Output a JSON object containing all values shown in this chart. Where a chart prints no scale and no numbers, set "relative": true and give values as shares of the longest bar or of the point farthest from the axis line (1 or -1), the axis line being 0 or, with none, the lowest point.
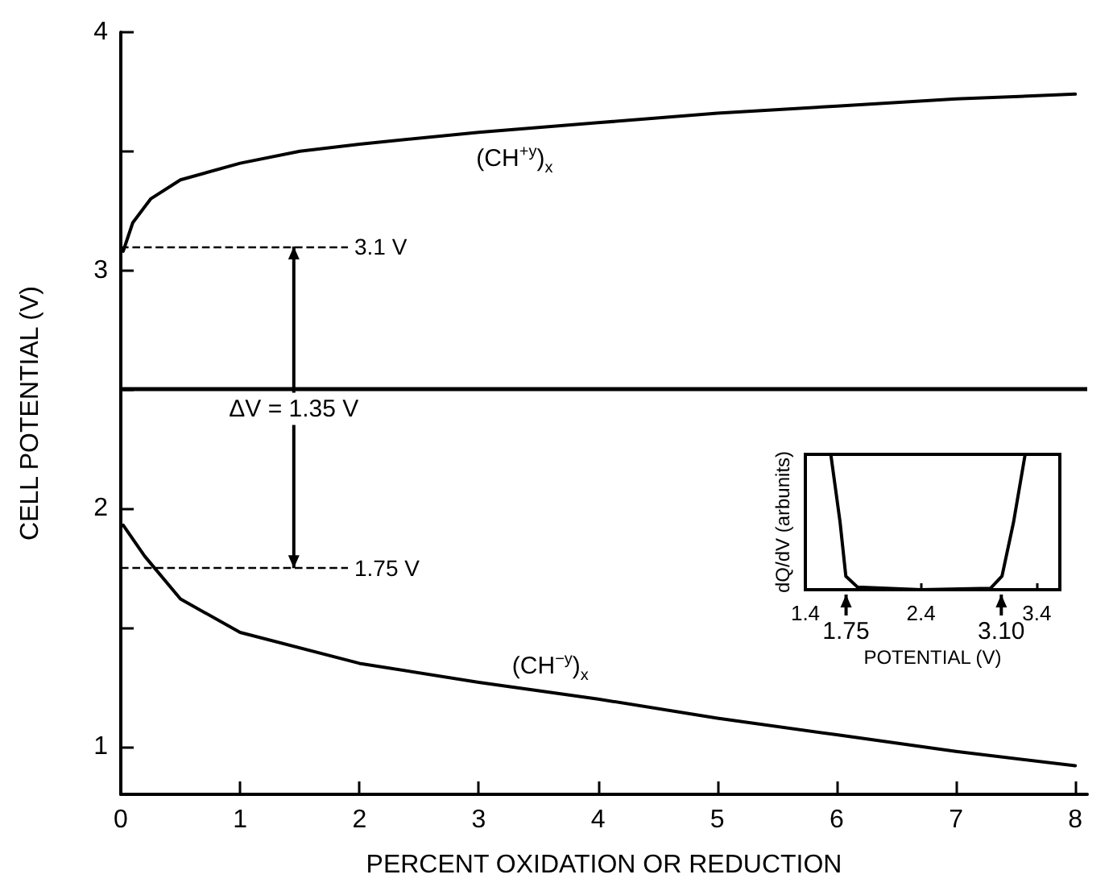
{
  "chart_data": [
    {
      "type": "line",
      "xlabel": "PERCENT OXIDATION OR REDUCTION",
      "ylabel": "CELL POTENTIAL (V)",
      "series": [
        {
          "name": "(CH$^{+y}$)$_{x}$",
          "color": "#000000",
          "x": [
            0.02,
            0.1,
            0.25,
            0.5,
            1,
            1.5,
            2,
            3,
            4,
            5,
            6,
            7,
            8
          ],
          "values": [
            3.08,
            3.2,
            3.3,
            3.38,
            3.45,
            3.5,
            3.53,
            3.58,
            3.62,
            3.66,
            3.69,
            3.72,
            3.74
          ]
        },
        {
          "name": "(CH$^{−y}$)$_{x}$",
          "color": "#000000",
          "x": [
            0.02,
            0.2,
            0.5,
            1,
            2,
            3,
            4,
            5,
            6,
            7,
            8
          ],
          "values": [
            1.93,
            1.8,
            1.62,
            1.48,
            1.35,
            1.27,
            1.2,
            1.12,
            1.05,
            0.98,
            0.92
          ]
        }
      ],
      "xlim": [
        0,
        8.1
      ],
      "xticks": [
        0,
        1,
        2,
        3,
        4,
        5,
        6,
        7,
        8
      ],
      "ylim": [
        0.8,
        4
      ],
      "yticks": [
        1,
        {
          "value": 1.5,
          "label": null
        },
        2,
        {
          "value": 2.5,
          "label": null
        },
        3,
        {
          "value": 3.5,
          "label": null
        },
        4
      ],
      "ref_lines": [
        {
          "axis": "y",
          "value": 3.1,
          "label": "3.1 V",
          "line_style": "dashed"
        },
        {
          "axis": "y",
          "value": 1.75,
          "label": "1.75 V",
          "line_style": "dashed"
        },
        {
          "axis": "y",
          "value": 2.5,
          "line_style": "solid"
        }
      ],
      "annotations": [
        {
          "text": "ΔV = 1.35 V",
          "x": 1.45,
          "y": 3.1
        }
      ],
      "marker": "none",
      "legend": false,
      "grid": false
    },
    {
      "type": "line",
      "relative": true,
      "xlabel": "POTENTIAL (V)",
      "ylabel": "dQ/dV (arbunits)",
      "series": [
        {
          "color": "#000000",
          "x": [
            1.62,
            1.7,
            1.75,
            1.85,
            2.4,
            3.0,
            3.1,
            3.2,
            3.3
          ],
          "values": [
            1,
            0.5,
            0.1,
            0.02,
            0,
            0.01,
            0.1,
            0.5,
            1
          ]
        }
      ],
      "xlim": [
        1.4,
        3.6
      ],
      "xticks": [
        1.4,
        2.4,
        3.4
      ],
      "annotations": [
        "1.75",
        "3.10"
      ],
      "tick_labels": "x",
      "marker": "none",
      "legend": false,
      "grid": false
    }
  ]
}
